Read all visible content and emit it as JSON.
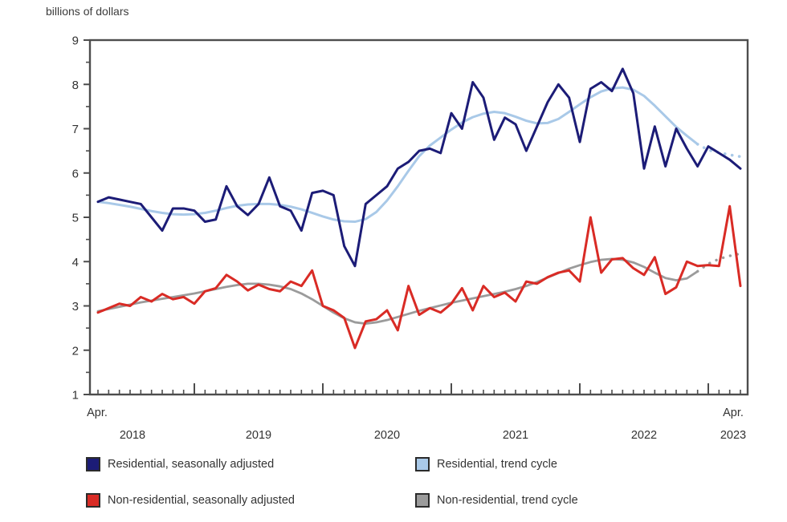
{
  "title": "billions of dollars",
  "colors": {
    "residential_sa": "#1c1c77",
    "residential_trend": "#a9c9e8",
    "nonresidential_sa": "#d92b25",
    "nonresidential_trend": "#9b9b9b",
    "axis": "#4d4d4d",
    "text": "#333333"
  },
  "legend": [
    {
      "label": "Residential, seasonally adjusted",
      "color": "#1c1c77"
    },
    {
      "label": "Residential, trend cycle",
      "color": "#a9c9e8"
    },
    {
      "label": "Non-residential, seasonally adjusted",
      "color": "#d92b25"
    },
    {
      "label": "Non-residential, trend cycle",
      "color": "#9b9b9b"
    }
  ],
  "chart_data": {
    "type": "line",
    "title": "billions of dollars",
    "xlabel": "",
    "ylabel": "billions of dollars",
    "grid": false,
    "legend_position": "bottom",
    "y_axis": {
      "min": 1,
      "max": 9,
      "major_tick_step": 1,
      "minor_tick_step": 0.5,
      "ticks": [
        "1",
        "2",
        "3",
        "4",
        "5",
        "6",
        "7",
        "8",
        "9"
      ]
    },
    "x_axis": {
      "start_label": "Apr.",
      "end_label": "Apr.",
      "year_labels": [
        "2018",
        "2019",
        "2020",
        "2021",
        "2022",
        "2023"
      ]
    },
    "x_months": [
      "2018-04",
      "2018-05",
      "2018-06",
      "2018-07",
      "2018-08",
      "2018-09",
      "2018-10",
      "2018-11",
      "2018-12",
      "2019-01",
      "2019-02",
      "2019-03",
      "2019-04",
      "2019-05",
      "2019-06",
      "2019-07",
      "2019-08",
      "2019-09",
      "2019-10",
      "2019-11",
      "2019-12",
      "2020-01",
      "2020-02",
      "2020-03",
      "2020-04",
      "2020-05",
      "2020-06",
      "2020-07",
      "2020-08",
      "2020-09",
      "2020-10",
      "2020-11",
      "2020-12",
      "2021-01",
      "2021-02",
      "2021-03",
      "2021-04",
      "2021-05",
      "2021-06",
      "2021-07",
      "2021-08",
      "2021-09",
      "2021-10",
      "2021-11",
      "2021-12",
      "2022-01",
      "2022-02",
      "2022-03",
      "2022-04",
      "2022-05",
      "2022-06",
      "2022-07",
      "2022-08",
      "2022-09",
      "2022-10",
      "2022-11",
      "2022-12",
      "2023-01",
      "2023-02",
      "2023-03",
      "2023-04"
    ],
    "series": [
      {
        "name": "Non-residential, trend cycle",
        "color": "#9b9b9b",
        "style": "solid_with_dotted_tail",
        "dotted_tail_points": 4,
        "stroke_width": 2.8,
        "values": [
          2.88,
          2.93,
          2.98,
          3.03,
          3.08,
          3.12,
          3.16,
          3.2,
          3.24,
          3.28,
          3.33,
          3.38,
          3.43,
          3.47,
          3.5,
          3.5,
          3.48,
          3.44,
          3.38,
          3.28,
          3.15,
          3.0,
          2.85,
          2.72,
          2.63,
          2.6,
          2.63,
          2.68,
          2.75,
          2.82,
          2.89,
          2.95,
          3.01,
          3.07,
          3.12,
          3.17,
          3.22,
          3.27,
          3.32,
          3.38,
          3.45,
          3.54,
          3.64,
          3.74,
          3.84,
          3.92,
          3.99,
          4.04,
          4.06,
          4.04,
          3.98,
          3.88,
          3.75,
          3.63,
          3.58,
          3.62,
          3.78,
          3.95,
          4.06,
          4.13,
          4.18
        ]
      },
      {
        "name": "Non-residential, seasonally adjusted",
        "color": "#d92b25",
        "style": "solid",
        "dotted_tail_points": 0,
        "stroke_width": 3,
        "values": [
          2.85,
          2.95,
          3.05,
          3.0,
          3.2,
          3.1,
          3.27,
          3.15,
          3.2,
          3.05,
          3.33,
          3.4,
          3.7,
          3.55,
          3.35,
          3.48,
          3.38,
          3.33,
          3.55,
          3.45,
          3.8,
          3.0,
          2.9,
          2.73,
          2.05,
          2.65,
          2.7,
          2.9,
          2.45,
          3.45,
          2.8,
          2.95,
          2.85,
          3.05,
          3.4,
          2.9,
          3.45,
          3.2,
          3.3,
          3.1,
          3.55,
          3.5,
          3.65,
          3.75,
          3.8,
          3.55,
          5.0,
          3.75,
          4.05,
          4.08,
          3.85,
          3.7,
          4.1,
          3.27,
          3.42,
          4.0,
          3.9,
          3.92,
          3.9,
          5.25,
          3.45
        ]
      },
      {
        "name": "Residential, trend cycle",
        "color": "#a9c9e8",
        "style": "solid_with_dotted_tail",
        "dotted_tail_points": 4,
        "stroke_width": 3,
        "values": [
          5.35,
          5.32,
          5.28,
          5.24,
          5.19,
          5.14,
          5.1,
          5.07,
          5.06,
          5.07,
          5.1,
          5.15,
          5.21,
          5.26,
          5.29,
          5.3,
          5.3,
          5.28,
          5.24,
          5.18,
          5.1,
          5.02,
          4.95,
          4.91,
          4.9,
          4.96,
          5.12,
          5.38,
          5.7,
          6.05,
          6.38,
          6.62,
          6.8,
          6.98,
          7.14,
          7.26,
          7.34,
          7.38,
          7.35,
          7.27,
          7.18,
          7.12,
          7.13,
          7.22,
          7.38,
          7.55,
          7.71,
          7.84,
          7.91,
          7.93,
          7.88,
          7.74,
          7.52,
          7.28,
          7.04,
          6.84,
          6.65,
          6.52,
          6.46,
          6.41,
          6.37
        ]
      },
      {
        "name": "Residential, seasonally adjusted",
        "color": "#1c1c77",
        "style": "solid",
        "dotted_tail_points": 0,
        "stroke_width": 3,
        "values": [
          5.35,
          5.45,
          5.4,
          5.35,
          5.3,
          5.0,
          4.7,
          5.2,
          5.2,
          5.15,
          4.9,
          4.95,
          5.7,
          5.25,
          5.05,
          5.3,
          5.9,
          5.25,
          5.15,
          4.7,
          5.55,
          5.6,
          5.5,
          4.35,
          3.9,
          5.3,
          5.5,
          5.7,
          6.1,
          6.25,
          6.5,
          6.55,
          6.45,
          7.35,
          7.0,
          8.05,
          7.7,
          6.75,
          7.25,
          7.1,
          6.5,
          7.05,
          7.6,
          8.0,
          7.7,
          6.7,
          7.9,
          8.05,
          7.85,
          8.35,
          7.8,
          6.1,
          7.05,
          6.15,
          7.0,
          6.55,
          6.15,
          6.6,
          6.45,
          6.3,
          6.1
        ]
      }
    ]
  }
}
